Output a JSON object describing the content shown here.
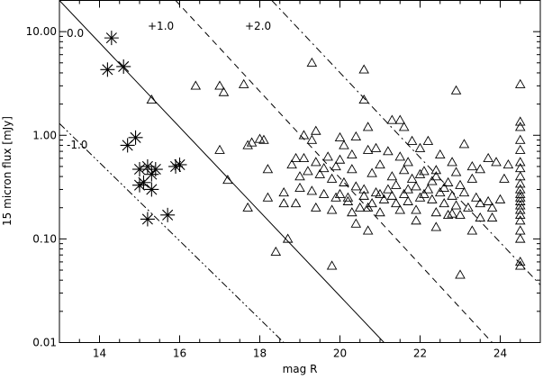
{
  "chart_data": {
    "type": "scatter",
    "xlabel": "mag R",
    "ylabel": "15 micron flux [mJy]",
    "xlim": [
      13,
      25
    ],
    "ylim": [
      0.01,
      20
    ],
    "yscale": "log",
    "x_ticks": [
      14,
      16,
      18,
      20,
      22,
      24
    ],
    "x_tick_labels": [
      "14",
      "16",
      "18",
      "20",
      "22",
      "24"
    ],
    "y_ticks": [
      0.01,
      0.1,
      1,
      10
    ],
    "y_tick_labels": [
      "0.01",
      "0.10",
      "1.00",
      "10.00"
    ],
    "grid": false,
    "reference_lines": [
      {
        "label": "0.0",
        "style": "solid",
        "x0": 13,
        "y0": 20,
        "x1": 21.1,
        "y1": 0.01
      },
      {
        "label": "+1.0",
        "style": "dashed",
        "x0": 15.9,
        "y0": 20,
        "x1": 23.8,
        "y1": 0.01
      },
      {
        "label": "+2.0",
        "style": "dashdot",
        "x0": 18.3,
        "y0": 20,
        "x1": 25,
        "y1": 0.036
      },
      {
        "label": "-1.0",
        "style": "dashdotdot",
        "x0": 13,
        "y0": 1.3,
        "x1": 18.6,
        "y1": 0.01
      }
    ],
    "series": [
      {
        "marker": "asterisk",
        "points": [
          [
            14.3,
            8.7
          ],
          [
            14.2,
            4.3
          ],
          [
            14.6,
            4.6
          ],
          [
            14.7,
            0.8
          ],
          [
            14.9,
            0.95
          ],
          [
            15.0,
            0.47
          ],
          [
            15.2,
            0.5
          ],
          [
            15.4,
            0.47
          ],
          [
            15.3,
            0.42
          ],
          [
            15.1,
            0.35
          ],
          [
            15.0,
            0.33
          ],
          [
            15.3,
            0.3
          ],
          [
            15.2,
            0.155
          ],
          [
            15.7,
            0.17
          ],
          [
            15.9,
            0.5
          ],
          [
            16.0,
            0.52
          ]
        ]
      },
      {
        "marker": "triangle",
        "points": [
          [
            15.3,
            2.2
          ],
          [
            16.4,
            3.0
          ],
          [
            17.0,
            3.0
          ],
          [
            17.1,
            2.6
          ],
          [
            17.6,
            3.1
          ],
          [
            17.0,
            0.72
          ],
          [
            17.2,
            0.37
          ],
          [
            17.8,
            0.85
          ],
          [
            17.7,
            0.8
          ],
          [
            18.0,
            0.92
          ],
          [
            18.1,
            0.9
          ],
          [
            18.2,
            0.47
          ],
          [
            17.7,
            0.2
          ],
          [
            18.2,
            0.25
          ],
          [
            18.6,
            0.22
          ],
          [
            18.4,
            0.075
          ],
          [
            18.7,
            0.1
          ],
          [
            19.3,
            5.0
          ],
          [
            19.1,
            1.0
          ],
          [
            19.3,
            0.9
          ],
          [
            19.4,
            1.1
          ],
          [
            20.0,
            0.95
          ],
          [
            20.1,
            0.8
          ],
          [
            20.4,
            0.97
          ],
          [
            20.6,
            4.3
          ],
          [
            20.6,
            2.2
          ],
          [
            20.7,
            1.2
          ],
          [
            21.3,
            1.4
          ],
          [
            21.5,
            1.4
          ],
          [
            21.6,
            1.2
          ],
          [
            21.8,
            0.88
          ],
          [
            22.0,
            0.75
          ],
          [
            22.2,
            0.88
          ],
          [
            22.5,
            0.65
          ],
          [
            22.8,
            0.55
          ],
          [
            22.9,
            2.7
          ],
          [
            23.1,
            0.82
          ],
          [
            23.3,
            0.5
          ],
          [
            23.5,
            0.47
          ],
          [
            23.7,
            0.6
          ],
          [
            23.9,
            0.55
          ],
          [
            24.2,
            0.52
          ],
          [
            24.1,
            0.38
          ],
          [
            23.3,
            0.38
          ],
          [
            22.7,
            0.35
          ],
          [
            22.4,
            0.4
          ],
          [
            22.1,
            0.45
          ],
          [
            21.7,
            0.55
          ],
          [
            21.5,
            0.62
          ],
          [
            21.2,
            0.7
          ],
          [
            20.9,
            0.75
          ],
          [
            20.7,
            0.72
          ],
          [
            20.3,
            0.65
          ],
          [
            20.0,
            0.58
          ],
          [
            19.7,
            0.62
          ],
          [
            19.4,
            0.55
          ],
          [
            19.1,
            0.6
          ],
          [
            18.9,
            0.6
          ],
          [
            18.8,
            0.52
          ],
          [
            19.0,
            0.4
          ],
          [
            19.2,
            0.45
          ],
          [
            19.5,
            0.42
          ],
          [
            19.8,
            0.38
          ],
          [
            20.1,
            0.35
          ],
          [
            20.4,
            0.32
          ],
          [
            20.6,
            0.3
          ],
          [
            20.9,
            0.28
          ],
          [
            21.2,
            0.3
          ],
          [
            21.4,
            0.33
          ],
          [
            21.7,
            0.3
          ],
          [
            21.9,
            0.32
          ],
          [
            22.2,
            0.3
          ],
          [
            22.5,
            0.28
          ],
          [
            22.8,
            0.26
          ],
          [
            23.1,
            0.28
          ],
          [
            23.4,
            0.25
          ],
          [
            23.7,
            0.23
          ],
          [
            24.0,
            0.24
          ],
          [
            23.8,
            0.2
          ],
          [
            23.5,
            0.22
          ],
          [
            23.2,
            0.2
          ],
          [
            22.9,
            0.21
          ],
          [
            22.6,
            0.22
          ],
          [
            22.3,
            0.24
          ],
          [
            22.0,
            0.25
          ],
          [
            21.7,
            0.23
          ],
          [
            21.4,
            0.22
          ],
          [
            21.1,
            0.24
          ],
          [
            20.8,
            0.22
          ],
          [
            20.5,
            0.2
          ],
          [
            20.2,
            0.23
          ],
          [
            19.9,
            0.25
          ],
          [
            19.6,
            0.27
          ],
          [
            19.3,
            0.29
          ],
          [
            19.0,
            0.31
          ],
          [
            18.6,
            0.28
          ],
          [
            18.9,
            0.22
          ],
          [
            19.4,
            0.2
          ],
          [
            19.8,
            0.19
          ],
          [
            20.3,
            0.18
          ],
          [
            20.7,
            0.2
          ],
          [
            21.0,
            0.18
          ],
          [
            21.5,
            0.19
          ],
          [
            21.9,
            0.19
          ],
          [
            22.4,
            0.18
          ],
          [
            22.7,
            0.17
          ],
          [
            23.0,
            0.17
          ],
          [
            20.0,
            0.27
          ],
          [
            20.2,
            0.25
          ],
          [
            20.6,
            0.26
          ],
          [
            21.0,
            0.27
          ],
          [
            21.3,
            0.26
          ],
          [
            21.6,
            0.27
          ],
          [
            22.1,
            0.27
          ],
          [
            22.6,
            0.31
          ],
          [
            23.0,
            0.33
          ],
          [
            22.3,
            0.36
          ],
          [
            21.8,
            0.38
          ],
          [
            21.3,
            0.4
          ],
          [
            20.8,
            0.43
          ],
          [
            20.3,
            0.47
          ],
          [
            19.9,
            0.5
          ],
          [
            19.6,
            0.48
          ],
          [
            21.0,
            0.52
          ],
          [
            21.6,
            0.46
          ],
          [
            22.0,
            0.42
          ],
          [
            22.4,
            0.46
          ],
          [
            22.9,
            0.44
          ],
          [
            20.4,
            0.14
          ],
          [
            20.7,
            0.12
          ],
          [
            21.9,
            0.15
          ],
          [
            22.4,
            0.13
          ],
          [
            23.3,
            0.12
          ],
          [
            23.5,
            0.16
          ],
          [
            19.8,
            0.055
          ],
          [
            22.8,
            0.175
          ],
          [
            23.0,
            0.045
          ],
          [
            23.8,
            0.16
          ],
          [
            24.5,
            3.1
          ],
          [
            24.5,
            1.35
          ],
          [
            24.5,
            1.2
          ],
          [
            24.5,
            0.9
          ],
          [
            24.5,
            0.72
          ],
          [
            24.5,
            0.55
          ],
          [
            24.5,
            0.48
          ],
          [
            24.5,
            0.4
          ],
          [
            24.5,
            0.34
          ],
          [
            24.5,
            0.3
          ],
          [
            24.5,
            0.27
          ],
          [
            24.5,
            0.25
          ],
          [
            24.5,
            0.23
          ],
          [
            24.5,
            0.21
          ],
          [
            24.5,
            0.19
          ],
          [
            24.5,
            0.17
          ],
          [
            24.5,
            0.15
          ],
          [
            24.5,
            0.12
          ],
          [
            24.5,
            0.1
          ],
          [
            24.5,
            0.06
          ],
          [
            24.5,
            0.055
          ]
        ]
      }
    ]
  }
}
